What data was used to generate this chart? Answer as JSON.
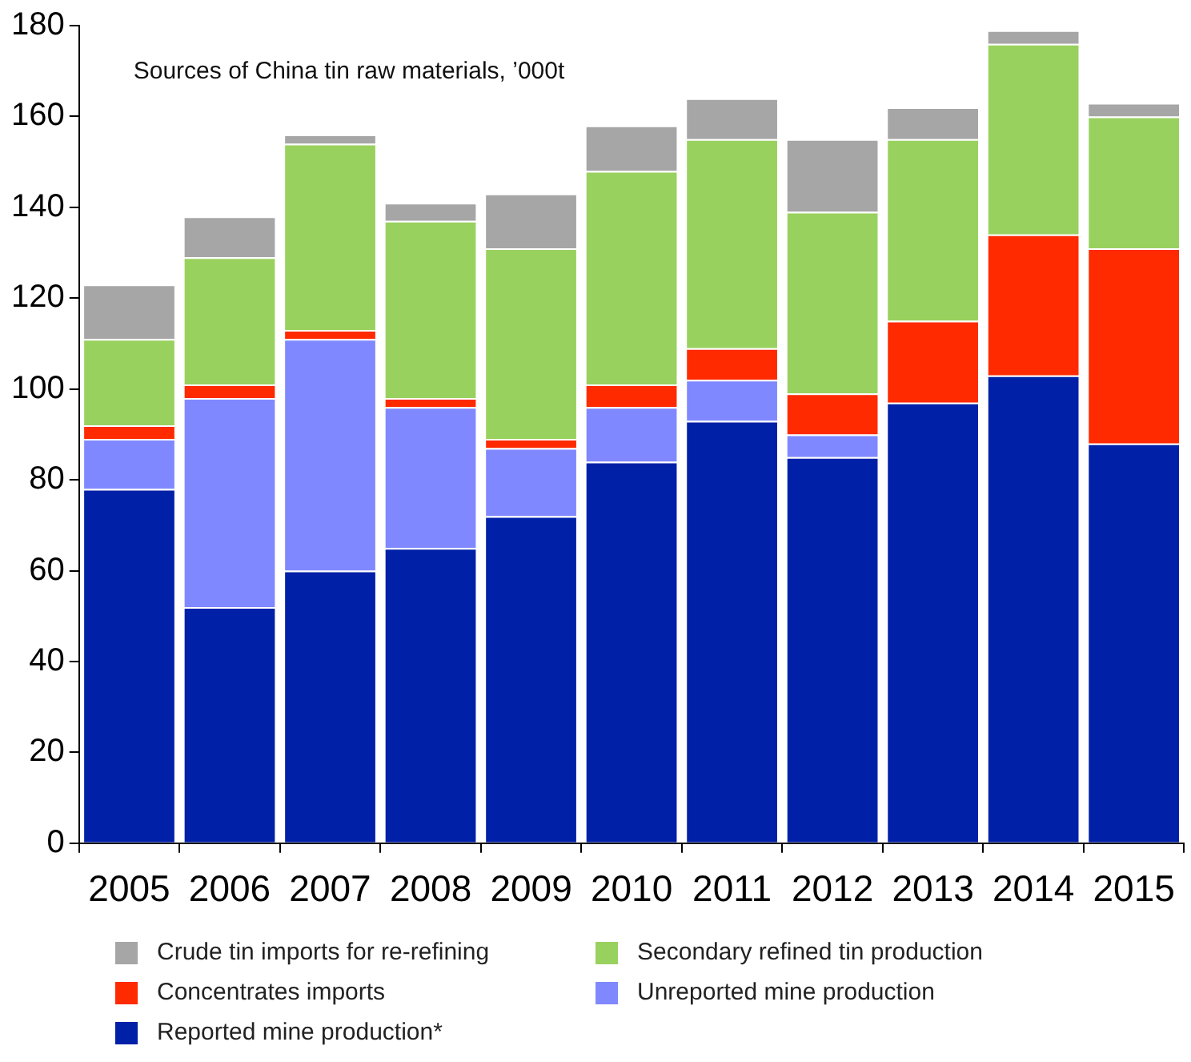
{
  "chart_data": {
    "type": "bar",
    "title": "Sources of China tin raw materials, ’000t",
    "stacked": true,
    "categories": [
      "2005",
      "2006",
      "2007",
      "2008",
      "2009",
      "2010",
      "2011",
      "2012",
      "2013",
      "2014",
      "2015"
    ],
    "series": [
      {
        "name": "Reported mine production*",
        "color": "#0020a8",
        "values": [
          78,
          52,
          60,
          65,
          72,
          84,
          93,
          85,
          97,
          103,
          88
        ]
      },
      {
        "name": "Unreported mine production",
        "color": "#8088ff",
        "values": [
          11,
          46,
          51,
          31,
          15,
          12,
          9,
          5,
          0,
          0,
          0
        ]
      },
      {
        "name": "Concentrates imports",
        "color": "#ff2a00",
        "values": [
          3,
          3,
          2,
          2,
          2,
          5,
          7,
          9,
          18,
          31,
          43
        ]
      },
      {
        "name": "Secondary refined tin production",
        "color": "#99d15f",
        "values": [
          19,
          28,
          41,
          39,
          42,
          47,
          46,
          40,
          40,
          42,
          29
        ]
      },
      {
        "name": "Crude tin imports for re-refining",
        "color": "#a6a6a6",
        "values": [
          12,
          9,
          2,
          4,
          12,
          10,
          9,
          16,
          7,
          3,
          3
        ]
      }
    ],
    "ylim": [
      0,
      180
    ],
    "yticks": [
      0,
      20,
      40,
      60,
      80,
      100,
      120,
      140,
      160,
      180
    ],
    "grid": false,
    "legend": "bottom"
  }
}
